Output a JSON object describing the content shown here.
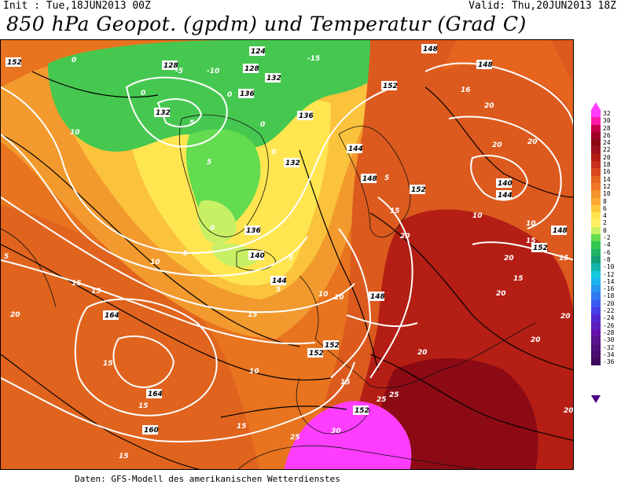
{
  "header": {
    "init": "Init : Tue,18JUN2013 00Z",
    "valid": "Valid: Thu,20JUN2013 18Z",
    "title": "850 hPa Geopot. (gpdm) und Temperatur (Grad C)"
  },
  "footer": "Daten: GFS-Modell des amerikanischen Wetterdienstes",
  "colorbar": {
    "labels": [
      "32",
      "30",
      "28",
      "26",
      "24",
      "22",
      "20",
      "18",
      "16",
      "14",
      "12",
      "10",
      "8",
      "6",
      "4",
      "2",
      "0",
      "-2",
      "-4",
      "-6",
      "-8",
      "-10",
      "-12",
      "-14",
      "-16",
      "-18",
      "-20",
      "-22",
      "-24",
      "-26",
      "-28",
      "-30",
      "-32",
      "-34",
      "-36"
    ],
    "colors": [
      "#ff3dff",
      "#ff1aa8",
      "#c8004b",
      "#a00028",
      "#8c0a14",
      "#a0141e",
      "#b41e14",
      "#c8321e",
      "#dc461e",
      "#e6641e",
      "#f07828",
      "#f5962d",
      "#faaa32",
      "#ffc83c",
      "#ffe650",
      "#fff064",
      "#c8f064",
      "#64dc50",
      "#32c850",
      "#1eb464",
      "#14a078",
      "#14b4aa",
      "#14c8dc",
      "#1eb4f0",
      "#2896f0",
      "#3278f0",
      "#3c5af0",
      "#4640e6",
      "#5028d2",
      "#5a1ebe",
      "#6414aa",
      "#5a148c",
      "#50107a",
      "#480c6c",
      "#3c0a5a"
    ]
  },
  "map": {
    "geopotential_labels": [
      "152",
      "128",
      "132",
      "124",
      "128",
      "132",
      "136",
      "132",
      "136",
      "144",
      "148",
      "152",
      "148",
      "148",
      "140",
      "144",
      "148",
      "152",
      "136",
      "140",
      "144",
      "148",
      "152",
      "164",
      "164",
      "160",
      "152",
      "152",
      "152"
    ],
    "temperature_labels": [
      "0",
      "0",
      "-5",
      "-10",
      "-15",
      "0",
      "5",
      "5",
      "0",
      "0",
      "10",
      "10",
      "5",
      "5",
      "0",
      "5",
      "15",
      "15",
      "20",
      "15",
      "16",
      "20",
      "20",
      "20",
      "10",
      "10",
      "15",
      "15",
      "20",
      "20",
      "10",
      "15",
      "15",
      "15",
      "10",
      "15",
      "20",
      "25",
      "25",
      "30",
      "25",
      "20",
      "20",
      "15",
      "15",
      "20",
      "20",
      "15",
      "10",
      "5",
      "5"
    ]
  }
}
